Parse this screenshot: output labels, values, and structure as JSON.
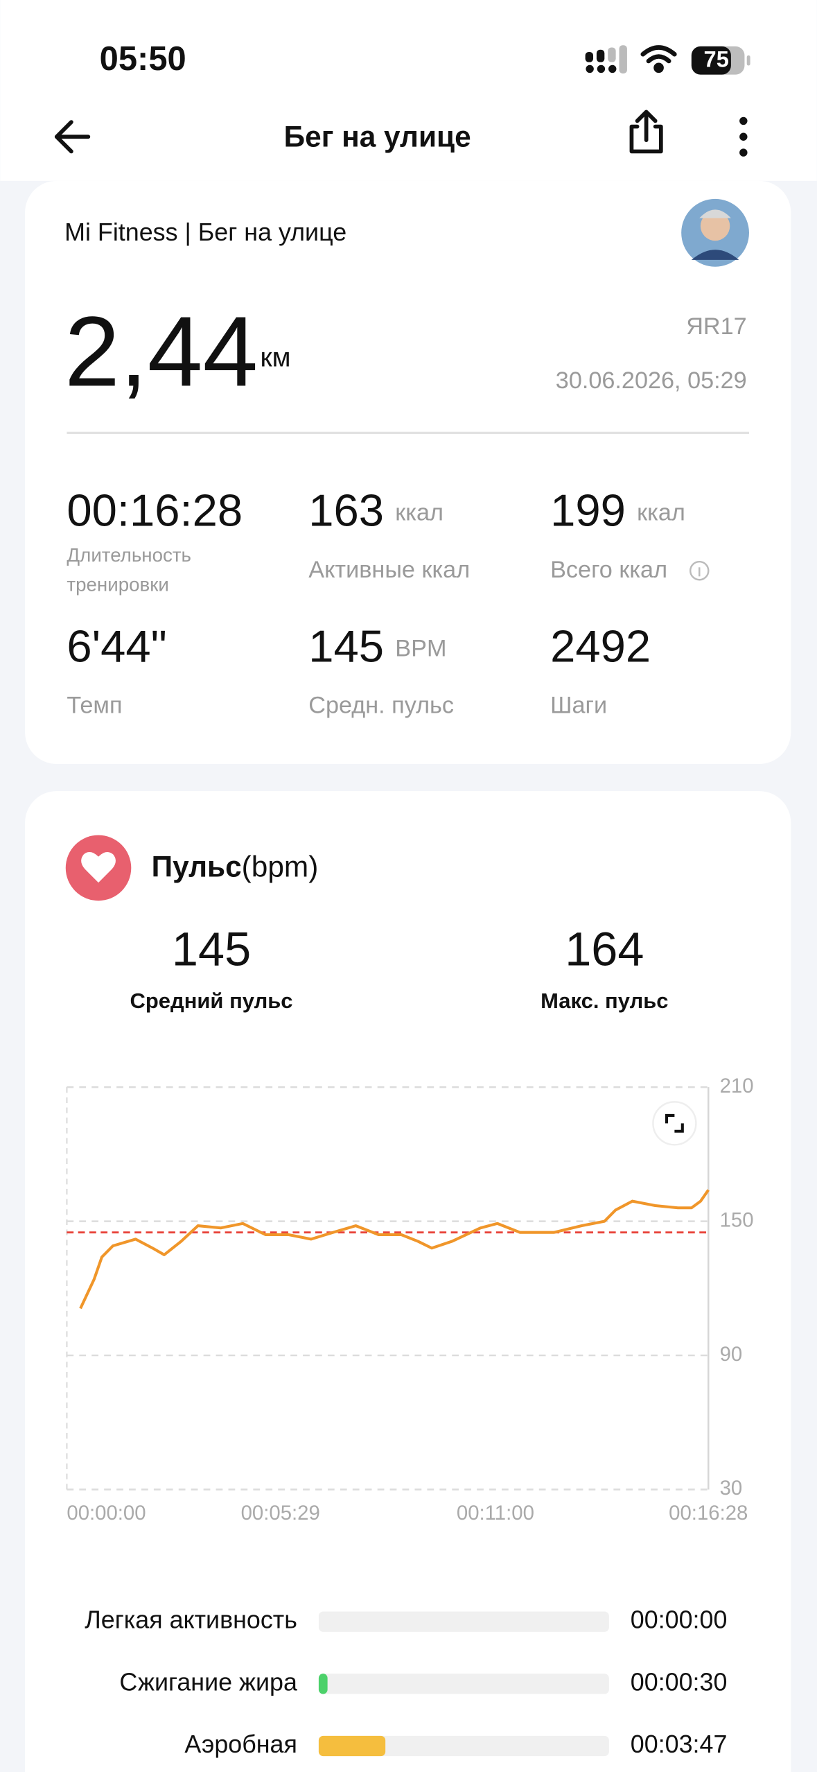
{
  "status_bar": {
    "time": "05:50",
    "battery": "75"
  },
  "header": {
    "title": "Бег на улице"
  },
  "summary": {
    "source": "Mi Fitness | Бег на улице",
    "distance": "2,44",
    "distance_unit": "км",
    "device": "ЯR17",
    "datetime": "30.06.2026, 05:29",
    "stats": [
      {
        "value": "00:16:28",
        "label": "Длительность тренировки"
      },
      {
        "value": "163",
        "unit": "ккал",
        "label": "Активные ккал"
      },
      {
        "value": "199",
        "unit": "ккал",
        "label": "Всего ккал"
      },
      {
        "value": "6'44\"",
        "label": "Темп"
      },
      {
        "value": "145",
        "unit": "BPM",
        "label": "Средн. пульс"
      },
      {
        "value": "2492",
        "label": "Шаги"
      }
    ]
  },
  "heart_rate": {
    "title": "Пульс",
    "unit": "(bpm)",
    "avg": {
      "value": 145,
      "label": "Средний пульс"
    },
    "max": {
      "value": 164,
      "label": "Макс. пульс"
    },
    "avg_line_color": "#e8443a"
  },
  "chart_data": [
    {
      "type": "line",
      "x": [
        21,
        42,
        54,
        71,
        106,
        132,
        150,
        176,
        202,
        237,
        271,
        306,
        341,
        376,
        410,
        445,
        480,
        515,
        541,
        562,
        593,
        637,
        663,
        698,
        750,
        793,
        828,
        845,
        871,
        906,
        941,
        962,
        976,
        988
      ],
      "series": [
        {
          "color": "#f0962a",
          "values": [
            111,
            124,
            134,
            139,
            142,
            138,
            135,
            141,
            148,
            147,
            149,
            144,
            144,
            142,
            145,
            148,
            144,
            144,
            141,
            138,
            141,
            147,
            149,
            145,
            145,
            148,
            150,
            155,
            159,
            157,
            156,
            156,
            159,
            164
          ]
        }
      ],
      "xlim": [
        0,
        988
      ],
      "xticks": [
        {
          "value": 0,
          "label": "00:00:00"
        },
        {
          "value": 329,
          "label": "00:05:29"
        },
        {
          "value": 660,
          "label": "00:11:00"
        },
        {
          "value": 988,
          "label": "00:16:28"
        }
      ],
      "ylim": [
        30,
        210
      ],
      "yticks": [
        30,
        90,
        150,
        210
      ],
      "grid": true
    },
    {
      "type": "bar",
      "categories": [
        "Легкая активность",
        "Сжигание жира",
        "Аэробная"
      ],
      "values": [
        0,
        30,
        227
      ],
      "value_labels": [
        "00:00:00",
        "00:00:30",
        "00:03:47"
      ],
      "colors": [
        "#9ad0f5",
        "#4cd16a",
        "#f5be3e"
      ],
      "xlim": [
        0,
        988
      ]
    }
  ]
}
